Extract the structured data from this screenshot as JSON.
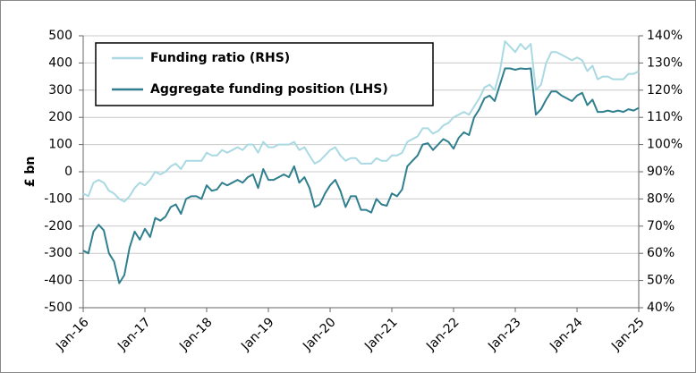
{
  "chart_data": {
    "type": "line",
    "y_label": "£ bn",
    "categories": [
      "Jan-16",
      null,
      null,
      null,
      null,
      null,
      null,
      null,
      null,
      null,
      null,
      null,
      "Jan-17",
      null,
      null,
      null,
      null,
      null,
      null,
      null,
      null,
      null,
      null,
      null,
      "Jan-18",
      null,
      null,
      null,
      null,
      null,
      null,
      null,
      null,
      null,
      null,
      null,
      "Jan-19",
      null,
      null,
      null,
      null,
      null,
      null,
      null,
      null,
      null,
      null,
      null,
      "Jan-20",
      null,
      null,
      null,
      null,
      null,
      null,
      null,
      null,
      null,
      null,
      null,
      "Jan-21",
      null,
      null,
      null,
      null,
      null,
      null,
      null,
      null,
      null,
      null,
      null,
      "Jan-22",
      null,
      null,
      null,
      null,
      null,
      null,
      null,
      null,
      null,
      null,
      null,
      "Jan-23",
      null,
      null,
      null,
      null,
      null,
      null,
      null,
      null,
      null,
      null,
      null,
      "Jan-24",
      null,
      null,
      null,
      null,
      null,
      null,
      null,
      null,
      null,
      null,
      null,
      "Jan-25"
    ],
    "series": [
      {
        "name": "Funding ratio (RHS)",
        "color": "#a9d9e2",
        "axis": "y2",
        "values": [
          82,
          81,
          86,
          87,
          86,
          83,
          82,
          80,
          79,
          81,
          84,
          86,
          85,
          87,
          90,
          89,
          90,
          92,
          93,
          91,
          94,
          94,
          94,
          94,
          97,
          96,
          96,
          98,
          97,
          98,
          99,
          98,
          100,
          100,
          97,
          101,
          99,
          99,
          100,
          100,
          100,
          101,
          98,
          99,
          96,
          93,
          94,
          96,
          98,
          99,
          96,
          94,
          95,
          95,
          93,
          93,
          93,
          95,
          94,
          94,
          96,
          96,
          97,
          101,
          102,
          103,
          106,
          106,
          104,
          105,
          107,
          108,
          110,
          111,
          112,
          111,
          114,
          117,
          121,
          122,
          120,
          127,
          138,
          136,
          134,
          137,
          135,
          137,
          120,
          122,
          130,
          134,
          134,
          133,
          132,
          131,
          132,
          131,
          127,
          129,
          124,
          125,
          125,
          124,
          124,
          124,
          126,
          126,
          127
        ]
      },
      {
        "name": "Aggregate funding position (LHS)",
        "color": "#2f7f8e",
        "values": [
          -290,
          -300,
          -220,
          -195,
          -215,
          -300,
          -330,
          -410,
          -380,
          -280,
          -220,
          -250,
          -210,
          -240,
          -170,
          -180,
          -165,
          -130,
          -120,
          -155,
          -100,
          -90,
          -90,
          -100,
          -50,
          -70,
          -65,
          -40,
          -50,
          -40,
          -30,
          -40,
          -20,
          -10,
          -60,
          10,
          -30,
          -30,
          -20,
          -10,
          -20,
          20,
          -40,
          -20,
          -60,
          -130,
          -120,
          -80,
          -50,
          -30,
          -70,
          -130,
          -90,
          -90,
          -140,
          -140,
          -150,
          -100,
          -120,
          -125,
          -80,
          -90,
          -65,
          20,
          40,
          60,
          100,
          105,
          80,
          100,
          120,
          110,
          85,
          125,
          145,
          135,
          200,
          230,
          270,
          280,
          260,
          320,
          380,
          380,
          375,
          380,
          378,
          380,
          210,
          230,
          265,
          295,
          295,
          280,
          270,
          260,
          280,
          290,
          245,
          265,
          220,
          220,
          225,
          220,
          225,
          220,
          230,
          225,
          235
        ]
      }
    ],
    "ylim": [
      -500,
      500
    ],
    "yticks": [
      -500,
      -400,
      -300,
      -200,
      -100,
      0,
      100,
      200,
      300,
      400,
      500
    ],
    "y2lim": [
      40,
      140
    ],
    "y2ticks": [
      {
        "value": 40,
        "label": "40%"
      },
      {
        "value": 50,
        "label": "50%"
      },
      {
        "value": 60,
        "label": "60%"
      },
      {
        "value": 70,
        "label": "70%"
      },
      {
        "value": 80,
        "label": "80%"
      },
      {
        "value": 90,
        "label": "90%"
      },
      {
        "value": 100,
        "label": "100%"
      },
      {
        "value": 110,
        "label": "110%"
      },
      {
        "value": 120,
        "label": "120%"
      },
      {
        "value": 130,
        "label": "130%"
      },
      {
        "value": 140,
        "label": "140%"
      }
    ],
    "grid": true,
    "legend": "upper left"
  }
}
